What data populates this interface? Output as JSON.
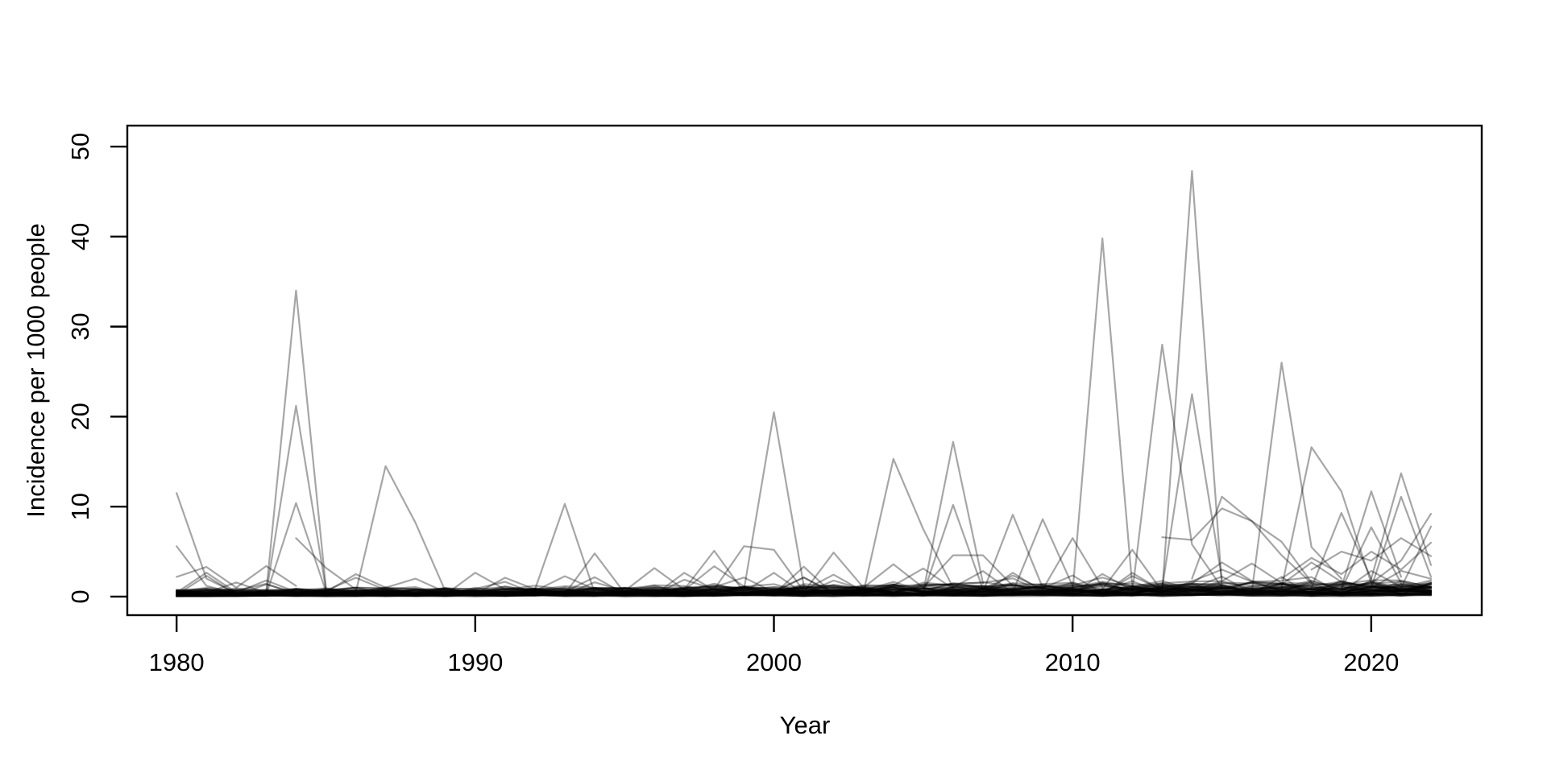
{
  "chart_data": {
    "type": "line",
    "title": "",
    "xlabel": "Year",
    "ylabel": "Incidence per 1000 people",
    "x_ticks": [
      1980,
      1990,
      2000,
      2010,
      2020
    ],
    "y_ticks": [
      0,
      10,
      20,
      30,
      40,
      50
    ],
    "xlim": [
      1978.35,
      2023.7
    ],
    "ylim": [
      -2.06,
      52.33
    ],
    "grid": false,
    "legend": "none",
    "line_color": "#000000",
    "line_opacity": 0.35,
    "line_width": 2.2,
    "frame_color": "#000000",
    "background_color": "#ffffff",
    "series": [
      {
        "points": [
          [
            1980,
            11.5
          ],
          [
            1981,
            2.0
          ],
          [
            1982,
            0.4
          ]
        ]
      },
      {
        "points": [
          [
            1980,
            5.6
          ],
          [
            1981,
            1.2
          ],
          [
            1982,
            0.3
          ]
        ]
      },
      {
        "points": [
          [
            1980,
            2.2
          ],
          [
            1981,
            3.3
          ],
          [
            1982,
            1.0
          ],
          [
            1983,
            3.4
          ],
          [
            1984,
            1.2
          ]
        ]
      },
      {
        "points": [
          [
            1983,
            0.5
          ],
          [
            1984,
            34.0
          ],
          [
            1985,
            1.0
          ]
        ]
      },
      {
        "points": [
          [
            1983,
            0.3
          ],
          [
            1984,
            21.2
          ],
          [
            1985,
            0.8
          ]
        ]
      },
      {
        "points": [
          [
            1983,
            0.2
          ],
          [
            1984,
            10.4
          ],
          [
            1985,
            0.6
          ]
        ]
      },
      {
        "points": [
          [
            1984,
            6.5
          ],
          [
            1985,
            3.2
          ],
          [
            1986,
            0.8
          ]
        ]
      },
      {
        "points": [
          [
            1985,
            0.5
          ],
          [
            1986,
            2.5
          ],
          [
            1987,
            1.0
          ],
          [
            1988,
            2.0
          ],
          [
            1989,
            0.5
          ]
        ]
      },
      {
        "points": [
          [
            1986,
            0.5
          ],
          [
            1987,
            14.5
          ],
          [
            1988,
            8.2
          ],
          [
            1989,
            0.6
          ],
          [
            1990,
            0.3
          ]
        ]
      },
      {
        "points": [
          [
            1990,
            0.3
          ],
          [
            1991,
            2.1
          ],
          [
            1992,
            0.8
          ],
          [
            1993,
            10.3
          ],
          [
            1994,
            0.4
          ]
        ]
      },
      {
        "points": [
          [
            1993,
            0.3
          ],
          [
            1994,
            4.8
          ],
          [
            1995,
            0.4
          ]
        ]
      },
      {
        "points": [
          [
            1997,
            0.8
          ],
          [
            1998,
            5.1
          ],
          [
            1999,
            0.5
          ]
        ]
      },
      {
        "points": [
          [
            1998,
            0.8
          ],
          [
            1999,
            5.6
          ],
          [
            2000,
            5.2
          ],
          [
            2001,
            0.6
          ]
        ]
      },
      {
        "points": [
          [
            1999,
            0.8
          ],
          [
            2000,
            20.5
          ],
          [
            2001,
            1.2
          ]
        ]
      },
      {
        "points": [
          [
            2001,
            0.5
          ],
          [
            2002,
            4.9
          ],
          [
            2003,
            1.0
          ],
          [
            2004,
            3.6
          ],
          [
            2005,
            1.0
          ]
        ]
      },
      {
        "points": [
          [
            2003,
            0.5
          ],
          [
            2004,
            15.3
          ],
          [
            2005,
            7.5
          ],
          [
            2006,
            1.0
          ]
        ]
      },
      {
        "points": [
          [
            2005,
            0.5
          ],
          [
            2006,
            17.2
          ],
          [
            2007,
            1.5
          ]
        ]
      },
      {
        "points": [
          [
            2005,
            0.3
          ],
          [
            2006,
            10.2
          ],
          [
            2007,
            0.8
          ]
        ]
      },
      {
        "points": [
          [
            2005,
            1.0
          ],
          [
            2006,
            4.6
          ],
          [
            2007,
            4.6
          ],
          [
            2008,
            1.2
          ]
        ]
      },
      {
        "points": [
          [
            2007,
            0.5
          ],
          [
            2008,
            9.1
          ],
          [
            2009,
            1.0
          ]
        ]
      },
      {
        "points": [
          [
            2008,
            0.5
          ],
          [
            2009,
            8.6
          ],
          [
            2010,
            1.2
          ]
        ]
      },
      {
        "points": [
          [
            2009,
            0.8
          ],
          [
            2010,
            6.5
          ],
          [
            2011,
            1.0
          ]
        ]
      },
      {
        "points": [
          [
            2010,
            0.5
          ],
          [
            2011,
            39.8
          ],
          [
            2012,
            1.2
          ]
        ]
      },
      {
        "points": [
          [
            2011,
            0.8
          ],
          [
            2012,
            5.2
          ],
          [
            2013,
            0.6
          ]
        ]
      },
      {
        "points": [
          [
            2012,
            0.5
          ],
          [
            2013,
            28.0
          ],
          [
            2014,
            5.8
          ],
          [
            2015,
            1.0
          ]
        ]
      },
      {
        "points": [
          [
            2013,
            0.5
          ],
          [
            2014,
            47.3
          ],
          [
            2015,
            1.2
          ]
        ]
      },
      {
        "points": [
          [
            2013,
            1.0
          ],
          [
            2014,
            22.5
          ],
          [
            2015,
            2.0
          ]
        ]
      },
      {
        "points": [
          [
            2013,
            6.6
          ],
          [
            2014,
            6.3
          ],
          [
            2015,
            9.8
          ],
          [
            2016,
            8.4
          ],
          [
            2017,
            6.1
          ],
          [
            2018,
            1.6
          ]
        ]
      },
      {
        "points": [
          [
            2014,
            2.0
          ],
          [
            2015,
            11.1
          ],
          [
            2016,
            8.4
          ],
          [
            2017,
            4.6
          ],
          [
            2018,
            1.5
          ]
        ]
      },
      {
        "points": [
          [
            2016,
            0.5
          ],
          [
            2017,
            26.0
          ],
          [
            2018,
            5.5
          ],
          [
            2019,
            2.0
          ]
        ]
      },
      {
        "points": [
          [
            2017,
            1.0
          ],
          [
            2018,
            16.6
          ],
          [
            2019,
            11.7
          ],
          [
            2020,
            1.5
          ]
        ]
      },
      {
        "points": [
          [
            2018,
            1.0
          ],
          [
            2019,
            9.3
          ],
          [
            2020,
            2.0
          ]
        ]
      },
      {
        "points": [
          [
            2019,
            1.0
          ],
          [
            2020,
            11.7
          ],
          [
            2021,
            2.2
          ]
        ]
      },
      {
        "points": [
          [
            2019,
            0.8
          ],
          [
            2020,
            7.7
          ],
          [
            2021,
            1.5
          ]
        ]
      },
      {
        "points": [
          [
            2020,
            2.0
          ],
          [
            2021,
            13.7
          ],
          [
            2022,
            3.5
          ]
        ]
      },
      {
        "points": [
          [
            2020,
            1.0
          ],
          [
            2021,
            11.1
          ],
          [
            2022,
            2.2
          ]
        ]
      },
      {
        "points": [
          [
            2020,
            1.5
          ],
          [
            2021,
            4.0
          ],
          [
            2022,
            9.2
          ]
        ]
      },
      {
        "points": [
          [
            2018,
            3.0
          ],
          [
            2019,
            5.0
          ],
          [
            2020,
            4.0
          ],
          [
            2021,
            6.5
          ],
          [
            2022,
            4.5
          ]
        ]
      },
      {
        "points": [
          [
            2017,
            2.0
          ],
          [
            2018,
            4.3
          ],
          [
            2019,
            2.5
          ],
          [
            2020,
            5.0
          ],
          [
            2021,
            3.0
          ],
          [
            2022,
            6.0
          ]
        ]
      },
      {
        "points": [
          [
            2021,
            1.0
          ],
          [
            2022,
            7.8
          ]
        ]
      }
    ],
    "background_band": {
      "count": 55,
      "seed": 20240601,
      "year_start": 1980,
      "year_end": 2022,
      "value_min": 0.02,
      "value_max": 3.8,
      "ramp": [
        0.7,
        1.65
      ]
    }
  }
}
